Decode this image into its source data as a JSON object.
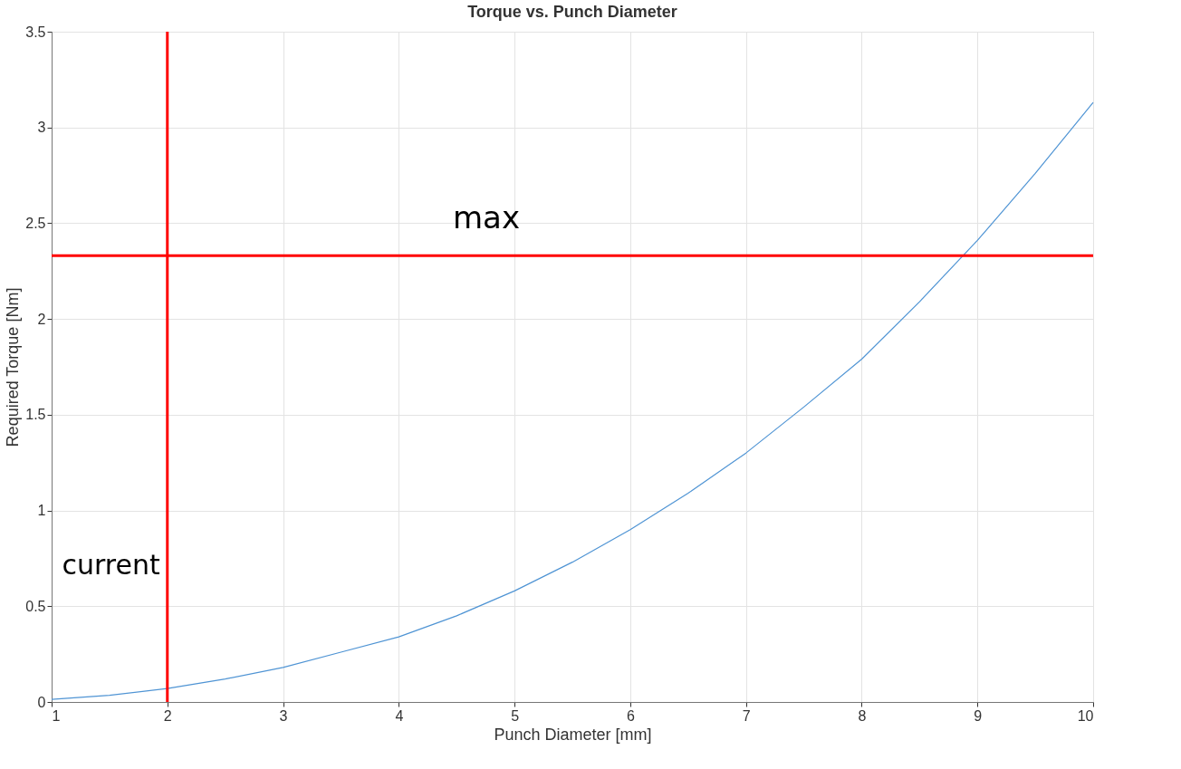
{
  "chart_data": {
    "type": "line",
    "title": "Torque vs. Punch Diameter",
    "xlabel": "Punch Diameter [mm]",
    "ylabel": "Required Torque [Nm]",
    "x": [
      1,
      1.5,
      2,
      2.5,
      3,
      3.5,
      4,
      4.5,
      5,
      5.5,
      6,
      6.5,
      7,
      7.5,
      8,
      8.5,
      9,
      9.5,
      10
    ],
    "series": [
      {
        "color": "#4f94d4",
        "values": [
          0.014,
          0.035,
          0.07,
          0.12,
          0.18,
          0.26,
          0.34,
          0.45,
          0.58,
          0.73,
          0.9,
          1.09,
          1.3,
          1.54,
          1.79,
          2.09,
          2.41,
          2.76,
          3.13
        ]
      }
    ],
    "xlim": [
      1,
      10
    ],
    "xticks": [
      1,
      2,
      3,
      4,
      5,
      6,
      7,
      8,
      9,
      10
    ],
    "ylim": [
      0,
      3.5
    ],
    "yticks": [
      0,
      0.5,
      1,
      1.5,
      2,
      2.5,
      3,
      3.5
    ],
    "grid": true,
    "marker": "none",
    "line_style": "solid",
    "ref_lines": [
      {
        "axis": "y",
        "value": 2.33,
        "label": "max",
        "color": "#ff0000"
      },
      {
        "axis": "x",
        "value": 2,
        "label": "current",
        "color": "#ff0000"
      }
    ]
  }
}
